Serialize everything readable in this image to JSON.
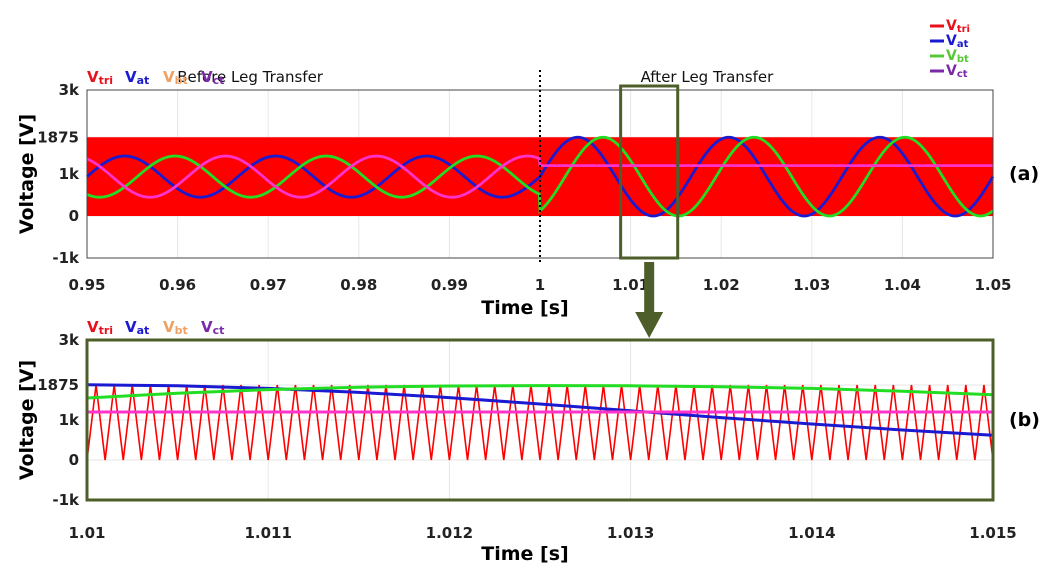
{
  "legend_box": {
    "entries": [
      {
        "label": "V",
        "sub": "tri",
        "color": "#e8101a"
      },
      {
        "label": "V",
        "sub": "at",
        "color": "#1a1ad0"
      },
      {
        "label": "V",
        "sub": "bt",
        "color": "#58c83a"
      },
      {
        "label": "V",
        "sub": "ct",
        "color": "#7a2aa8"
      }
    ]
  },
  "chart_data": [
    {
      "id": "a",
      "type": "line",
      "panel_label": "(a)",
      "xlabel": "Time [s]",
      "ylabel": "Voltage [V]",
      "xlim": [
        0.95,
        1.05
      ],
      "ylim": [
        -1000,
        3000
      ],
      "x_ticks": [
        0.95,
        0.96,
        0.97,
        0.98,
        0.99,
        1,
        1.01,
        1.02,
        1.03,
        1.04,
        1.05
      ],
      "x_tick_labels": [
        "0.95",
        "0.96",
        "0.97",
        "0.98",
        "0.99",
        "1",
        "1.01",
        "1.02",
        "1.03",
        "1.04",
        "1.05"
      ],
      "y_ticks": [
        -1000,
        0,
        1000,
        1875,
        3000
      ],
      "y_tick_labels": [
        "-1k",
        "0",
        "1k",
        "1875",
        "3k"
      ],
      "inline_legend": [
        {
          "label": "V",
          "sub": "tri",
          "color": "#e8101a"
        },
        {
          "label": "V",
          "sub": "at",
          "color": "#1a1ad0"
        },
        {
          "label": "V",
          "sub": "bt",
          "color": "#f0a060"
        },
        {
          "label": "V",
          "sub": "ct",
          "color": "#7a2aa8"
        }
      ],
      "annotations": [
        {
          "text": "Before Leg Transfer",
          "x": 0.954
        },
        {
          "text": "After Leg Transfer",
          "x": 1.0111
        }
      ],
      "transfer_time": 1.0,
      "zoom_region": [
        1.0089,
        1.0152
      ],
      "carrier": {
        "name": "Vtri",
        "min": 0,
        "max": 1875,
        "color": "#ff0000"
      },
      "series": [
        {
          "name": "Vat",
          "color": "#1a1ad0",
          "before": {
            "offset": 937.5,
            "amplitude": 490,
            "frequency": 60,
            "phase_deg": 0
          },
          "after": {
            "offset": 937.5,
            "amplitude": 937.5,
            "frequency": 60,
            "phase_deg": 0
          }
        },
        {
          "name": "Vbt",
          "color": "#22dd22",
          "before": {
            "offset": 937.5,
            "amplitude": 490,
            "frequency": 60,
            "phase_deg": -120
          },
          "after": {
            "offset": 937.5,
            "amplitude": 937.5,
            "frequency": 60,
            "phase_deg": -60
          }
        },
        {
          "name": "Vct",
          "color": "#ff33cc",
          "before": {
            "offset": 937.5,
            "amplitude": 490,
            "frequency": 60,
            "phase_deg": 120
          },
          "after": {
            "offset": 1200,
            "amplitude": 0,
            "frequency": 60,
            "phase_deg": 0
          }
        }
      ]
    },
    {
      "id": "b",
      "type": "line",
      "panel_label": "(b)",
      "xlabel": "Time [s]",
      "ylabel": "Voltage [V]",
      "xlim": [
        1.01,
        1.015
      ],
      "ylim": [
        -1000,
        3000
      ],
      "x_ticks": [
        1.01,
        1.011,
        1.012,
        1.013,
        1.014,
        1.015
      ],
      "x_tick_labels": [
        "1.01",
        "1.011",
        "1.012",
        "1.013",
        "1.014",
        "1.015"
      ],
      "y_ticks": [
        -1000,
        0,
        1000,
        1875,
        3000
      ],
      "y_tick_labels": [
        "-1k",
        "0",
        "1k",
        "1875",
        "3k"
      ],
      "inline_legend": [
        {
          "label": "V",
          "sub": "tri",
          "color": "#e8101a"
        },
        {
          "label": "V",
          "sub": "at",
          "color": "#1a1ad0"
        },
        {
          "label": "V",
          "sub": "bt",
          "color": "#f0a060"
        },
        {
          "label": "V",
          "sub": "ct",
          "color": "#7a2aa8"
        }
      ],
      "carrier": {
        "name": "Vtri",
        "min": 0,
        "max": 1875,
        "frequency": 10000,
        "color": "#ff0000"
      },
      "series": [
        {
          "name": "Vat",
          "color": "#1a1ad0",
          "points": {
            "x": [
              1.01,
              1.0105,
              1.011,
              1.0115,
              1.012,
              1.0125,
              1.013,
              1.0135,
              1.014,
              1.0145,
              1.015
            ],
            "y": [
              1880,
              1855,
              1790,
              1690,
              1560,
              1400,
              1230,
              1060,
              900,
              750,
              620
            ]
          }
        },
        {
          "name": "Vbt",
          "color": "#22dd22",
          "points": {
            "x": [
              1.01,
              1.0105,
              1.011,
              1.0115,
              1.012,
              1.0125,
              1.013,
              1.0135,
              1.014,
              1.0145,
              1.015
            ],
            "y": [
              1550,
              1670,
              1760,
              1820,
              1850,
              1860,
              1855,
              1830,
              1790,
              1720,
              1630
            ]
          }
        },
        {
          "name": "Vct",
          "color": "#ff33cc",
          "points": {
            "x": [
              1.01,
              1.015
            ],
            "y": [
              1200,
              1200
            ]
          }
        }
      ]
    }
  ]
}
